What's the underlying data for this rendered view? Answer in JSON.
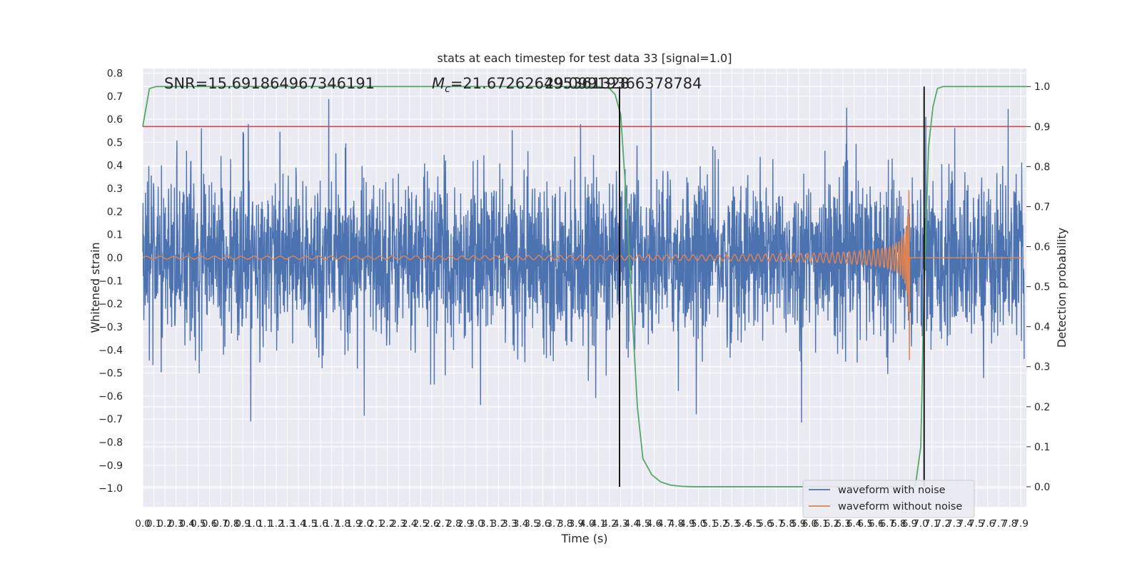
{
  "chart_data": {
    "type": "line",
    "title": "stats at each timestep for test data 33 [signal=1.0]",
    "xlabel": "Time (s)",
    "ylabel": "Whitened strain",
    "y2label": "Detection probability",
    "xlim": [
      0,
      7.95
    ],
    "ylim": [
      -1.08,
      0.82
    ],
    "y2lim": [
      -0.05,
      1.045
    ],
    "x_ticks": [
      "0.0",
      "0.1",
      "0.2",
      "0.3",
      "0.4",
      "0.5",
      "0.6",
      "0.7",
      "0.8",
      "0.9",
      "1.0",
      "1.1",
      "1.2",
      "1.3",
      "1.4",
      "1.5",
      "1.6",
      "1.7",
      "1.8",
      "1.9",
      "2.0",
      "2.1",
      "2.2",
      "2.3",
      "2.4",
      "2.5",
      "2.6",
      "2.7",
      "2.8",
      "2.9",
      "3.0",
      "3.1",
      "3.2",
      "3.3",
      "3.4",
      "3.5",
      "3.6",
      "3.7",
      "3.8",
      "3.9",
      "4.0",
      "4.1",
      "4.2",
      "4.3",
      "4.4",
      "4.5",
      "4.6",
      "4.7",
      "4.8",
      "4.9",
      "5.0",
      "5.1",
      "5.2",
      "5.3",
      "5.4",
      "5.5",
      "5.6",
      "5.7",
      "5.8",
      "5.9",
      "6.0",
      "6.1",
      "6.2",
      "6.3",
      "6.4",
      "6.5",
      "6.6",
      "6.7",
      "6.8",
      "6.9",
      "7.0",
      "7.1",
      "7.2",
      "7.3",
      "7.4",
      "7.5",
      "7.6",
      "7.7",
      "7.8",
      "7.9"
    ],
    "y_ticks": [
      "0.8",
      "0.7",
      "0.6",
      "0.5",
      "0.4",
      "0.3",
      "0.2",
      "0.1",
      "0.0",
      "−0.1",
      "−0.2",
      "−0.3",
      "−0.4",
      "−0.5",
      "−0.6",
      "−0.7",
      "−0.8",
      "−0.9",
      "−1.0"
    ],
    "y2_ticks": [
      "1.0",
      "0.9",
      "0.8",
      "0.7",
      "0.6",
      "0.5",
      "0.4",
      "0.3",
      "0.2",
      "0.1",
      "0.0"
    ],
    "annotations": {
      "snr": "SNR=15.691864967346191",
      "mc": "M_c=21.672626495361328",
      "mc_prefix": "M",
      "mc_sub": "c",
      "mc_rest": "=21.672626495361328",
      "overlap": "29.09919366378784"
    },
    "threshold": {
      "value": 0.9,
      "color": "#c44e52"
    },
    "vertical_lines": [
      4.29,
      7.03
    ],
    "series": [
      {
        "name": "waveform with noise",
        "color": "#4c72b0"
      },
      {
        "name": "waveform without noise",
        "color": "#dd8452"
      }
    ],
    "probability": {
      "color": "#55a868",
      "t": [
        0.0,
        0.06,
        0.12,
        0.5,
        1.0,
        2.0,
        3.0,
        4.0,
        4.1,
        4.2,
        4.25,
        4.3,
        4.35,
        4.4,
        4.45,
        4.5,
        4.58,
        4.66,
        4.75,
        4.85,
        4.95,
        5.1,
        5.5,
        6.0,
        6.3,
        6.7,
        6.9,
        6.95,
        7.0,
        7.03,
        7.07,
        7.11,
        7.15,
        7.2,
        7.4,
        7.6,
        7.95
      ],
      "p": [
        0.9,
        0.995,
        1.0,
        1.0,
        1.0,
        1.0,
        1.0,
        1.0,
        1.0,
        0.995,
        0.98,
        0.93,
        0.72,
        0.45,
        0.2,
        0.07,
        0.03,
        0.012,
        0.004,
        0.001,
        0.0,
        0.0,
        0.0,
        0.0,
        0.0,
        0.0,
        0.0,
        0.0,
        0.1,
        0.5,
        0.85,
        0.95,
        0.995,
        1.0,
        1.0,
        1.0,
        1.0
      ]
    },
    "grid": true,
    "legend": "bottom-right"
  }
}
